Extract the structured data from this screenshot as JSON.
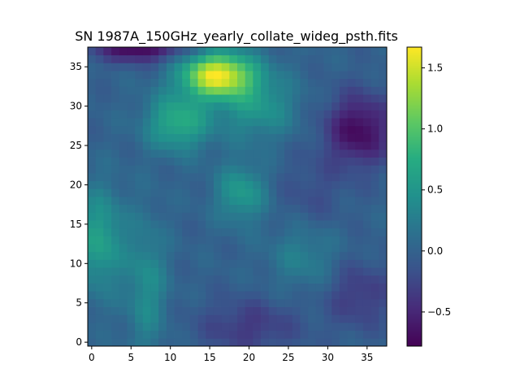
{
  "chart_data": {
    "type": "heatmap",
    "title": "SN 1987A_150GHz_yearly_collate_wideg_psth.fits",
    "xlabel": "",
    "ylabel": "",
    "xlim": [
      -0.5,
      37.5
    ],
    "ylim": [
      -0.5,
      37.5
    ],
    "grid_size": [
      38,
      38
    ],
    "x_ticks": [
      0,
      5,
      10,
      15,
      20,
      25,
      30,
      35
    ],
    "y_ticks": [
      0,
      5,
      10,
      15,
      20,
      25,
      30,
      35
    ],
    "colormap": "viridis",
    "colorbar": {
      "vmin": -0.78,
      "vmax": 1.67,
      "ticks": [
        -0.5,
        0.0,
        0.5,
        1.0,
        1.5
      ],
      "tick_labels": [
        "−0.5",
        "0.0",
        "0.5",
        "1.0",
        "1.5"
      ]
    },
    "features": [
      {
        "kind": "peak",
        "x": 16,
        "y": 34,
        "value": 1.65
      },
      {
        "kind": "ridge",
        "x": 11,
        "y": 28,
        "value": 0.7
      },
      {
        "kind": "blob",
        "x": 1,
        "y": 13,
        "value": 0.65
      },
      {
        "kind": "blob",
        "x": 19,
        "y": 19,
        "value": 0.55
      },
      {
        "kind": "trough",
        "x": 34,
        "y": 27,
        "value": -0.72
      },
      {
        "kind": "trough",
        "x": 6,
        "y": 37,
        "value": -0.75
      }
    ]
  }
}
